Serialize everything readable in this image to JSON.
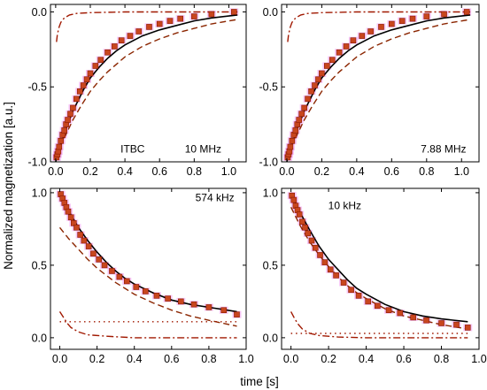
{
  "figure": {
    "ylabel": "Normalized magnetization [a.u.]",
    "xlabel": "time [s]"
  },
  "colors": {
    "fit_solid": "#000000",
    "component_dashed": "#8b2500",
    "component_dashdot": "#a01800",
    "component_dotted": "#a01800",
    "marker_fill": "#c8461e",
    "marker_edge": "#8b1a00",
    "error_band": "#ee82ee"
  },
  "chart_data": [
    {
      "id": "ITBC-10MHz",
      "type": "line",
      "annotations": [
        "ITBC",
        "10 MHz"
      ],
      "xlim": [
        -0.03,
        1.1
      ],
      "ylim": [
        -1.0,
        0.05
      ],
      "xticks": [
        0.0,
        0.2,
        0.4,
        0.6,
        0.8,
        1.0
      ],
      "yticks": [
        -1.0,
        -0.5,
        0.0
      ],
      "ytick_labels": [
        "-1.0",
        "-0.5",
        "0.0"
      ],
      "markers": {
        "x": [
          0.005,
          0.01,
          0.015,
          0.02,
          0.03,
          0.04,
          0.05,
          0.06,
          0.07,
          0.085,
          0.1,
          0.12,
          0.14,
          0.16,
          0.18,
          0.2,
          0.23,
          0.26,
          0.3,
          0.34,
          0.38,
          0.43,
          0.48,
          0.54,
          0.6,
          0.66,
          0.72,
          0.8,
          0.9,
          1.03
        ],
        "y": [
          -0.97,
          -0.95,
          -0.93,
          -0.9,
          -0.86,
          -0.82,
          -0.79,
          -0.75,
          -0.72,
          -0.68,
          -0.64,
          -0.58,
          -0.53,
          -0.49,
          -0.45,
          -0.41,
          -0.36,
          -0.32,
          -0.27,
          -0.23,
          -0.19,
          -0.16,
          -0.13,
          -0.1,
          -0.08,
          -0.06,
          -0.045,
          -0.03,
          -0.015,
          0.0
        ]
      },
      "curves": [
        {
          "style": "solid",
          "points": [
            [
              0.0,
              -1.0
            ],
            [
              0.02,
              -0.92
            ],
            [
              0.04,
              -0.85
            ],
            [
              0.06,
              -0.78
            ],
            [
              0.08,
              -0.72
            ],
            [
              0.1,
              -0.66
            ],
            [
              0.13,
              -0.59
            ],
            [
              0.16,
              -0.52
            ],
            [
              0.2,
              -0.44
            ],
            [
              0.25,
              -0.37
            ],
            [
              0.3,
              -0.31
            ],
            [
              0.35,
              -0.26
            ],
            [
              0.4,
              -0.22
            ],
            [
              0.5,
              -0.16
            ],
            [
              0.6,
              -0.12
            ],
            [
              0.7,
              -0.09
            ],
            [
              0.8,
              -0.06
            ],
            [
              0.9,
              -0.04
            ],
            [
              1.05,
              -0.02
            ]
          ]
        },
        {
          "style": "dashed",
          "points": [
            [
              0.0,
              -0.96
            ],
            [
              0.05,
              -0.84
            ],
            [
              0.1,
              -0.72
            ],
            [
              0.15,
              -0.62
            ],
            [
              0.2,
              -0.53
            ],
            [
              0.25,
              -0.46
            ],
            [
              0.3,
              -0.4
            ],
            [
              0.35,
              -0.35
            ],
            [
              0.4,
              -0.3
            ],
            [
              0.5,
              -0.23
            ],
            [
              0.6,
              -0.18
            ],
            [
              0.7,
              -0.14
            ],
            [
              0.8,
              -0.11
            ],
            [
              0.9,
              -0.08
            ],
            [
              1.05,
              -0.05
            ]
          ]
        },
        {
          "style": "dashdot",
          "points": [
            [
              0.005,
              -0.2
            ],
            [
              0.01,
              -0.15
            ],
            [
              0.02,
              -0.1
            ],
            [
              0.03,
              -0.07
            ],
            [
              0.05,
              -0.04
            ],
            [
              0.08,
              -0.02
            ],
            [
              0.12,
              -0.01
            ],
            [
              0.2,
              -0.005
            ],
            [
              0.4,
              0.0
            ],
            [
              1.05,
              0.0
            ]
          ]
        }
      ]
    },
    {
      "id": "7.88MHz",
      "type": "line",
      "annotations": [
        "7.88 MHz"
      ],
      "xlim": [
        -0.03,
        1.1
      ],
      "ylim": [
        -1.0,
        0.05
      ],
      "xticks": [
        0.0,
        0.2,
        0.4,
        0.6,
        0.8,
        1.0
      ],
      "yticks": [
        -1.0,
        -0.5,
        0.0
      ],
      "ytick_labels": [
        "-1.0",
        "-0.5",
        "0.0"
      ],
      "markers": {
        "x": [
          0.005,
          0.01,
          0.015,
          0.02,
          0.03,
          0.04,
          0.05,
          0.06,
          0.07,
          0.085,
          0.1,
          0.12,
          0.14,
          0.16,
          0.18,
          0.2,
          0.23,
          0.26,
          0.3,
          0.34,
          0.38,
          0.43,
          0.48,
          0.54,
          0.6,
          0.66,
          0.72,
          0.8,
          0.9,
          1.03
        ],
        "y": [
          -0.97,
          -0.95,
          -0.93,
          -0.9,
          -0.86,
          -0.82,
          -0.79,
          -0.75,
          -0.72,
          -0.68,
          -0.64,
          -0.58,
          -0.53,
          -0.49,
          -0.45,
          -0.41,
          -0.36,
          -0.32,
          -0.27,
          -0.23,
          -0.19,
          -0.16,
          -0.13,
          -0.1,
          -0.08,
          -0.06,
          -0.045,
          -0.03,
          -0.015,
          0.0
        ]
      },
      "curves": [
        {
          "style": "solid",
          "points": [
            [
              0.0,
              -1.0
            ],
            [
              0.02,
              -0.92
            ],
            [
              0.04,
              -0.85
            ],
            [
              0.06,
              -0.78
            ],
            [
              0.08,
              -0.72
            ],
            [
              0.1,
              -0.66
            ],
            [
              0.13,
              -0.59
            ],
            [
              0.16,
              -0.52
            ],
            [
              0.2,
              -0.44
            ],
            [
              0.25,
              -0.37
            ],
            [
              0.3,
              -0.31
            ],
            [
              0.35,
              -0.26
            ],
            [
              0.4,
              -0.22
            ],
            [
              0.5,
              -0.16
            ],
            [
              0.6,
              -0.12
            ],
            [
              0.7,
              -0.09
            ],
            [
              0.8,
              -0.06
            ],
            [
              0.9,
              -0.04
            ],
            [
              1.05,
              -0.02
            ]
          ]
        },
        {
          "style": "dashed",
          "points": [
            [
              0.0,
              -0.96
            ],
            [
              0.05,
              -0.84
            ],
            [
              0.1,
              -0.72
            ],
            [
              0.15,
              -0.62
            ],
            [
              0.2,
              -0.53
            ],
            [
              0.25,
              -0.46
            ],
            [
              0.3,
              -0.4
            ],
            [
              0.35,
              -0.35
            ],
            [
              0.4,
              -0.3
            ],
            [
              0.5,
              -0.23
            ],
            [
              0.6,
              -0.18
            ],
            [
              0.7,
              -0.14
            ],
            [
              0.8,
              -0.11
            ],
            [
              0.9,
              -0.08
            ],
            [
              1.05,
              -0.05
            ]
          ]
        },
        {
          "style": "dashdot",
          "points": [
            [
              0.005,
              -0.2
            ],
            [
              0.01,
              -0.15
            ],
            [
              0.02,
              -0.1
            ],
            [
              0.03,
              -0.07
            ],
            [
              0.05,
              -0.04
            ],
            [
              0.08,
              -0.02
            ],
            [
              0.12,
              -0.01
            ],
            [
              0.2,
              -0.005
            ],
            [
              0.4,
              0.0
            ],
            [
              1.05,
              0.0
            ]
          ]
        }
      ]
    },
    {
      "id": "574kHz",
      "type": "line",
      "annotations": [
        "574 kHz"
      ],
      "xlim": [
        -0.05,
        1.0
      ],
      "ylim": [
        -0.08,
        1.03
      ],
      "xticks": [
        0.0,
        0.2,
        0.4,
        0.6,
        0.8,
        1.0
      ],
      "yticks": [
        0.0,
        0.5,
        1.0
      ],
      "ytick_labels": [
        "0.0",
        "0.5",
        "1.0"
      ],
      "markers": {
        "x": [
          0.005,
          0.015,
          0.025,
          0.035,
          0.045,
          0.06,
          0.075,
          0.09,
          0.11,
          0.13,
          0.155,
          0.18,
          0.21,
          0.24,
          0.28,
          0.32,
          0.36,
          0.41,
          0.46,
          0.52,
          0.58,
          0.65,
          0.72,
          0.8,
          0.88,
          0.95
        ],
        "y": [
          0.99,
          0.96,
          0.93,
          0.9,
          0.87,
          0.83,
          0.79,
          0.76,
          0.71,
          0.67,
          0.63,
          0.58,
          0.54,
          0.5,
          0.46,
          0.42,
          0.39,
          0.35,
          0.32,
          0.29,
          0.27,
          0.25,
          0.23,
          0.21,
          0.19,
          0.16
        ]
      },
      "curves": [
        {
          "style": "solid",
          "points": [
            [
              0.0,
              1.0
            ],
            [
              0.05,
              0.87
            ],
            [
              0.1,
              0.76
            ],
            [
              0.15,
              0.67
            ],
            [
              0.2,
              0.59
            ],
            [
              0.25,
              0.52
            ],
            [
              0.3,
              0.46
            ],
            [
              0.35,
              0.41
            ],
            [
              0.4,
              0.37
            ],
            [
              0.5,
              0.31
            ],
            [
              0.6,
              0.26
            ],
            [
              0.7,
              0.23
            ],
            [
              0.8,
              0.21
            ],
            [
              0.95,
              0.18
            ]
          ]
        },
        {
          "style": "dashed",
          "points": [
            [
              0.0,
              0.76
            ],
            [
              0.05,
              0.68
            ],
            [
              0.1,
              0.61
            ],
            [
              0.15,
              0.54
            ],
            [
              0.2,
              0.48
            ],
            [
              0.25,
              0.43
            ],
            [
              0.3,
              0.38
            ],
            [
              0.35,
              0.34
            ],
            [
              0.4,
              0.3
            ],
            [
              0.5,
              0.24
            ],
            [
              0.6,
              0.19
            ],
            [
              0.7,
              0.15
            ],
            [
              0.8,
              0.12
            ],
            [
              0.95,
              0.08
            ]
          ]
        },
        {
          "style": "dotted",
          "points": [
            [
              0.0,
              0.11
            ],
            [
              0.95,
              0.11
            ]
          ]
        },
        {
          "style": "dashdot",
          "points": [
            [
              0.0,
              0.18
            ],
            [
              0.02,
              0.14
            ],
            [
              0.04,
              0.1
            ],
            [
              0.06,
              0.07
            ],
            [
              0.1,
              0.04
            ],
            [
              0.15,
              0.02
            ],
            [
              0.25,
              0.01
            ],
            [
              0.4,
              0.0
            ],
            [
              0.95,
              0.0
            ]
          ]
        }
      ]
    },
    {
      "id": "10kHz",
      "type": "line",
      "annotations": [
        "10 kHz"
      ],
      "xlim": [
        -0.05,
        1.0
      ],
      "ylim": [
        -0.08,
        1.03
      ],
      "xticks": [
        0.0,
        0.2,
        0.4,
        0.6,
        0.8,
        1.0
      ],
      "yticks": [
        0.0,
        0.5,
        1.0
      ],
      "ytick_labels": [
        "0.0",
        "0.5",
        "1.0"
      ],
      "markers": {
        "x": [
          0.005,
          0.015,
          0.025,
          0.035,
          0.045,
          0.06,
          0.075,
          0.09,
          0.11,
          0.13,
          0.155,
          0.18,
          0.21,
          0.24,
          0.28,
          0.32,
          0.36,
          0.41,
          0.46,
          0.52,
          0.58,
          0.65,
          0.72,
          0.8,
          0.88,
          0.94
        ],
        "y": [
          0.98,
          0.95,
          0.91,
          0.88,
          0.85,
          0.8,
          0.76,
          0.72,
          0.67,
          0.62,
          0.57,
          0.52,
          0.47,
          0.43,
          0.38,
          0.33,
          0.29,
          0.25,
          0.22,
          0.19,
          0.17,
          0.14,
          0.12,
          0.1,
          0.09,
          0.07
        ]
      },
      "curves": [
        {
          "style": "solid",
          "points": [
            [
              0.0,
              1.0
            ],
            [
              0.05,
              0.86
            ],
            [
              0.1,
              0.74
            ],
            [
              0.15,
              0.63
            ],
            [
              0.2,
              0.54
            ],
            [
              0.25,
              0.47
            ],
            [
              0.3,
              0.4
            ],
            [
              0.35,
              0.34
            ],
            [
              0.4,
              0.3
            ],
            [
              0.5,
              0.23
            ],
            [
              0.6,
              0.18
            ],
            [
              0.7,
              0.15
            ],
            [
              0.8,
              0.13
            ],
            [
              0.94,
              0.11
            ]
          ]
        },
        {
          "style": "dashed",
          "points": [
            [
              0.0,
              0.9
            ],
            [
              0.05,
              0.77
            ],
            [
              0.1,
              0.66
            ],
            [
              0.15,
              0.57
            ],
            [
              0.2,
              0.49
            ],
            [
              0.25,
              0.42
            ],
            [
              0.3,
              0.36
            ],
            [
              0.35,
              0.31
            ],
            [
              0.4,
              0.27
            ],
            [
              0.5,
              0.2
            ],
            [
              0.6,
              0.15
            ],
            [
              0.7,
              0.12
            ],
            [
              0.8,
              0.09
            ],
            [
              0.94,
              0.06
            ]
          ]
        },
        {
          "style": "dotted",
          "points": [
            [
              0.0,
              0.03
            ],
            [
              0.94,
              0.03
            ]
          ]
        },
        {
          "style": "dashdot",
          "points": [
            [
              0.0,
              0.18
            ],
            [
              0.02,
              0.13
            ],
            [
              0.04,
              0.09
            ],
            [
              0.06,
              0.06
            ],
            [
              0.1,
              0.03
            ],
            [
              0.15,
              0.015
            ],
            [
              0.25,
              0.005
            ],
            [
              0.4,
              0.0
            ],
            [
              0.94,
              0.0
            ]
          ]
        }
      ]
    }
  ]
}
